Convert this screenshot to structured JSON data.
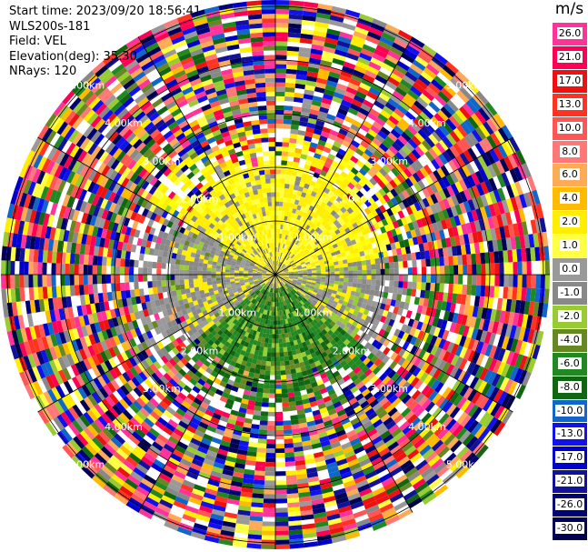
{
  "info": {
    "start_time": "Start time: 2023/09/20 18:56:41",
    "instrument": "WLS200s-181",
    "field": "Field: VEL",
    "elevation": "Elevation(deg): 35.30",
    "nrays": "NRays: 120"
  },
  "colorbar": {
    "unit": "m/s",
    "ticks": [
      "26.0",
      "21.0",
      "17.0",
      "13.0",
      "10.0",
      "8.0",
      "6.0",
      "4.0",
      "2.0",
      "1.0",
      "0.0",
      "-1.0",
      "-2.0",
      "-4.0",
      "-6.0",
      "-8.0",
      "-10.0",
      "-13.0",
      "-17.0",
      "-21.0",
      "-26.0",
      "-30.0"
    ],
    "colors": [
      "#ff3399",
      "#ff0055",
      "#ee1111",
      "#ff3322",
      "#ff5555",
      "#ff7777",
      "#ffaa55",
      "#ffbb00",
      "#ffee00",
      "#ffff44",
      "#999999",
      "#888888",
      "#99cc33",
      "#668822",
      "#228822",
      "#116611",
      "#1166cc",
      "#1111ee",
      "#0000cc",
      "#111199",
      "#000077",
      "#000055"
    ]
  },
  "range_labels": [
    "1.00km",
    "2.00km",
    "3.00km",
    "4.00km",
    "5.00km"
  ],
  "map": {
    "nrays": 120,
    "rings": 5
  }
}
